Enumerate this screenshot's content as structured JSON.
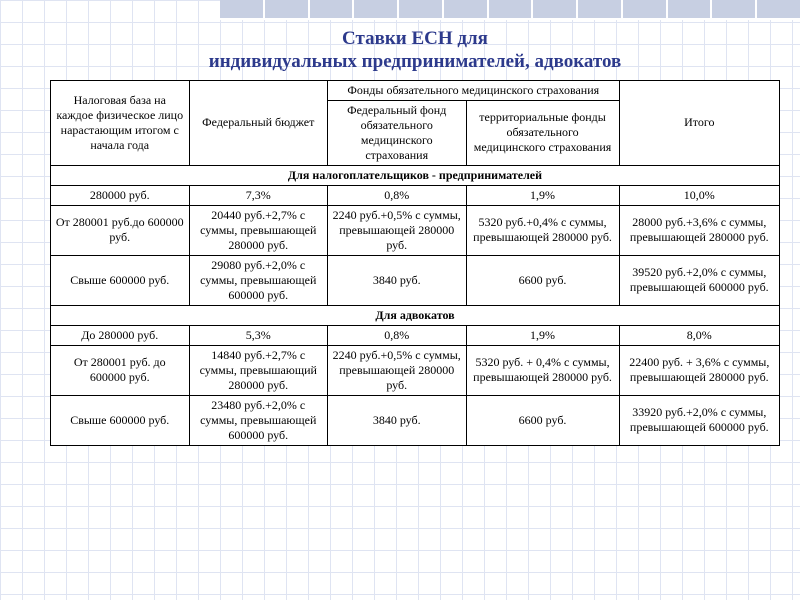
{
  "title_color": "#2d3a8c",
  "title_line1": "Ставки ЕСН для",
  "title_line2": "индивидуальных предпринимателей, адвокатов",
  "headers": {
    "base": "Налоговая база на каждое физическое лицо нарастающим итогом с начала года",
    "fed_budget": "Федеральный бюджет",
    "medical_funds": "Фонды обязательного медицинского страхования",
    "total": "Итого",
    "fed_fund": "Федеральный фонд обязательного медицинского страхования",
    "terr_fund": "территориальные фонды обязательного медицинского страхования"
  },
  "sections": {
    "entrepreneurs": "Для налогоплательщиков - предпринимателей",
    "lawyers": "Для адвокатов"
  },
  "e": {
    "r1": {
      "base": "280000 руб.",
      "fb": "7,3%",
      "ff": "0,8%",
      "tf": "1,9%",
      "t": "10,0%"
    },
    "r2": {
      "base": "От 280001 руб.до 600000 руб.",
      "fb": "20440 руб.+2,7% с суммы, превышающей 280000 руб.",
      "ff": "2240 руб.+0,5% с суммы, превышающей 280000 руб.",
      "tf": "5320 руб.+0,4% с суммы, превышающей 280000 руб.",
      "t": "28000 руб.+3,6% с суммы, превышающей 280000 руб."
    },
    "r3": {
      "base": "Свыше 600000 руб.",
      "fb": "29080 руб.+2,0% с суммы, превышающей 600000 руб.",
      "ff": "3840 руб.",
      "tf": "6600 руб.",
      "t": "39520 руб.+2,0% с суммы, превышающей 600000 руб."
    }
  },
  "l": {
    "r1": {
      "base": "До 280000 руб.",
      "fb": "5,3%",
      "ff": "0,8%",
      "tf": "1,9%",
      "t": "8,0%"
    },
    "r2": {
      "base": "От 280001 руб. до 600000 руб.",
      "fb": "14840 руб.+2,7% с суммы, превышающий 280000 руб.",
      "ff": "2240 руб.+0,5% с суммы, превышающей 280000 руб.",
      "tf": "5320 руб. + 0,4% с суммы, превышающей 280000 руб.",
      "t": "22400 руб. + 3,6% с суммы, превышающей 280000 руб."
    },
    "r3": {
      "base": "Свыше 600000 руб.",
      "fb": "23480 руб.+2,0% с суммы, превышающей 600000 руб.",
      "ff": "3840 руб.",
      "tf": "6600 руб.",
      "t": "33920 руб.+2,0% с суммы, превышающей 600000 руб."
    }
  }
}
